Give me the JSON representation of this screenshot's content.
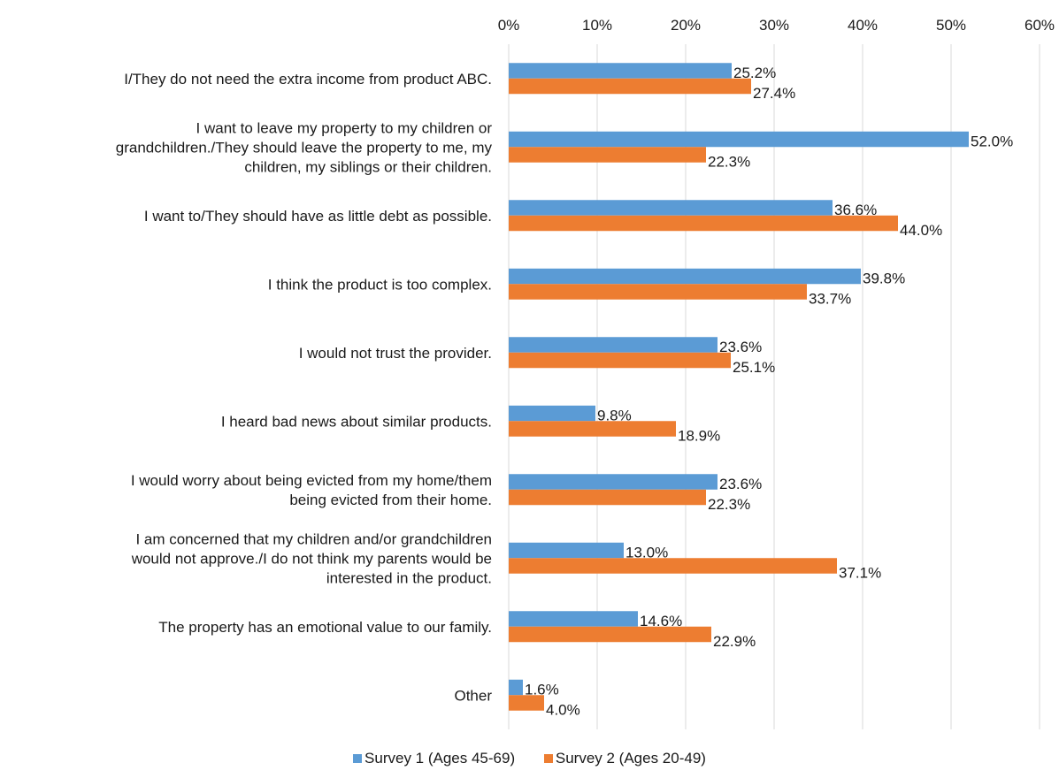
{
  "chart_data": {
    "type": "bar",
    "orientation": "horizontal",
    "categories": [
      [
        "I/They do not need the extra income from product ABC."
      ],
      [
        "I want to leave my property to my children or",
        "grandchildren./They should leave the property to me, my",
        "children, my siblings or their children."
      ],
      [
        "I want to/They should have as little debt as possible."
      ],
      [
        "I think the product is too complex."
      ],
      [
        "I would not trust the provider."
      ],
      [
        "I heard bad news about similar products."
      ],
      [
        "I would worry about being evicted from my home/them",
        "being evicted from their home."
      ],
      [
        "I am concerned that my children and/or grandchildren",
        "would not approve./I do not think my parents would be",
        "interested in the product."
      ],
      [
        "The property has an emotional value to our family."
      ],
      [
        "Other"
      ]
    ],
    "series": [
      {
        "name": "Survey 1 (Ages 45-69)",
        "color": "#5b9bd5",
        "values": [
          25.2,
          52.0,
          36.6,
          39.8,
          23.6,
          9.8,
          23.6,
          13.0,
          14.6,
          1.6
        ],
        "labels": [
          "25.2%",
          "52.0%",
          "36.6%",
          "39.8%",
          "23.6%",
          "9.8%",
          "23.6%",
          "13.0%",
          "14.6%",
          "1.6%"
        ]
      },
      {
        "name": "Survey 2 (Ages 20-49)",
        "color": "#ed7d31",
        "values": [
          27.4,
          22.3,
          44.0,
          33.7,
          25.1,
          18.9,
          22.3,
          37.1,
          22.9,
          4.0
        ],
        "labels": [
          "27.4%",
          "22.3%",
          "44.0%",
          "33.7%",
          "25.1%",
          "18.9%",
          "22.3%",
          "37.1%",
          "22.9%",
          "4.0%"
        ]
      }
    ],
    "xlim": [
      0,
      60
    ],
    "xticks": [
      "0%",
      "10%",
      "20%",
      "30%",
      "40%",
      "50%",
      "60%"
    ],
    "grid": true,
    "legend_position": "bottom",
    "gridline_color": "#d9d9d9"
  }
}
